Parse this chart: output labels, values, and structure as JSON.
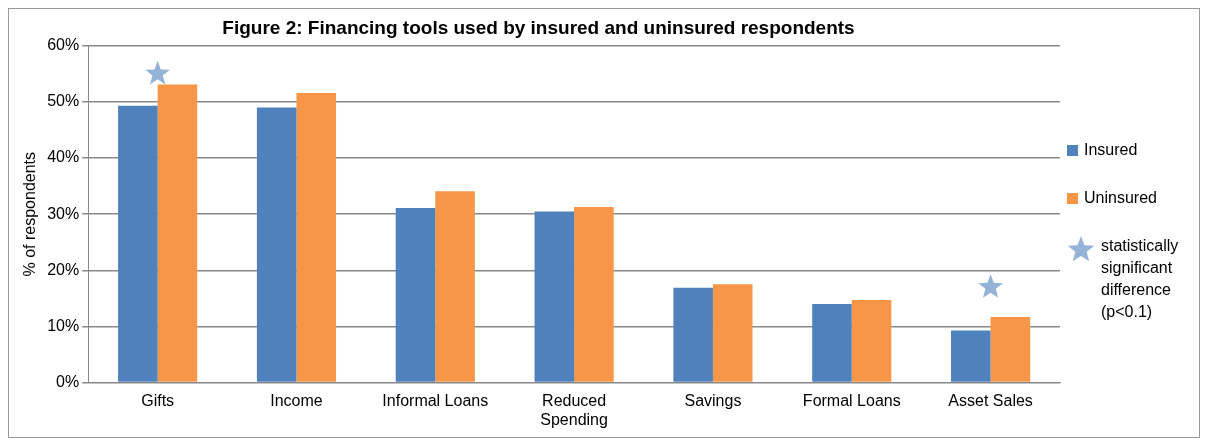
{
  "chart_data": {
    "type": "bar",
    "title": "Figure 2: Financing tools used by insured and uninsured respondents",
    "ylabel": "% of respondents",
    "categories": [
      "Gifts",
      "Income",
      "Informal Loans",
      "Reduced Spending",
      "Savings",
      "Formal Loans",
      "Asset Sales"
    ],
    "series": [
      {
        "name": "Insured",
        "color": "#4f81bd",
        "values": [
          49.3,
          49.0,
          31.1,
          30.5,
          16.9,
          14.0,
          9.3
        ]
      },
      {
        "name": "Uninsured",
        "color": "#f79646",
        "values": [
          53.1,
          51.6,
          34.1,
          31.3,
          17.5,
          14.7,
          11.7
        ]
      },
      {
        "name": "statistically significant difference (p<0.1)",
        "type": "scatter",
        "marker": "star",
        "color": "#95b3d7",
        "x": [
          "Gifts",
          "Asset Sales"
        ],
        "values": [
          55,
          17
        ]
      }
    ],
    "ylim": [
      0,
      60
    ],
    "yticks": [
      {
        "value": 0,
        "label": "0%"
      },
      {
        "value": 10,
        "label": "10%"
      },
      {
        "value": 20,
        "label": "20%"
      },
      {
        "value": 30,
        "label": "30%"
      },
      {
        "value": 40,
        "label": "40%"
      },
      {
        "value": 50,
        "label": "50%"
      },
      {
        "value": 60,
        "label": "60%"
      }
    ],
    "grid": "y",
    "legend": "right"
  }
}
